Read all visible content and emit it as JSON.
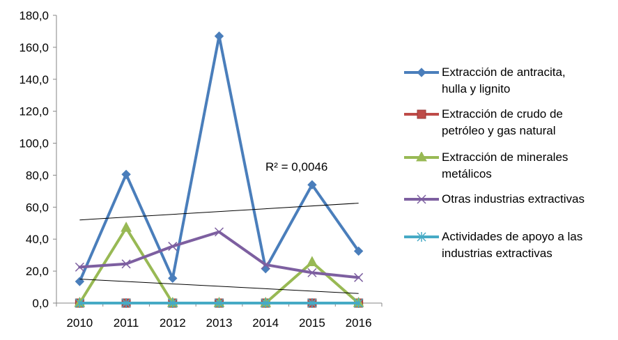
{
  "chart_data": {
    "type": "line",
    "title": "",
    "xlabel": "",
    "ylabel": "",
    "categories": [
      "2010",
      "2011",
      "2012",
      "2013",
      "2014",
      "2015",
      "2016"
    ],
    "ylim": [
      0,
      180
    ],
    "yticks": [
      "0,0",
      "20,0",
      "40,0",
      "60,0",
      "80,0",
      "100,0",
      "120,0",
      "140,0",
      "160,0",
      "180,0"
    ],
    "grid": false,
    "legend_position": "right",
    "series": [
      {
        "name": "Extracción de antracita, hulla y lignito",
        "name_lines": [
          "Extracción de antracita,",
          "hulla y lignito"
        ],
        "values": [
          13.5,
          80.5,
          15.5,
          167.0,
          21.5,
          74.0,
          32.5
        ],
        "color": "#4A7EBB",
        "marker": "diamond",
        "trend": [
          52.0,
          62.5
        ]
      },
      {
        "name": "Extracción de crudo de petróleo y gas natural",
        "name_lines": [
          "Extracción de crudo de",
          "petróleo y gas natural"
        ],
        "values": [
          0,
          0,
          0,
          0,
          0,
          0,
          0
        ],
        "color": "#BE4B48",
        "marker": "square"
      },
      {
        "name": "Extracción de minerales metálicos",
        "name_lines": [
          "Extracción de minerales",
          "metálicos"
        ],
        "values": [
          0,
          47.0,
          0,
          0,
          0,
          25.5,
          0
        ],
        "color": "#98B954",
        "marker": "triangle"
      },
      {
        "name": "Otras industrias extractivas",
        "name_lines": [
          "Otras industrias extractivas"
        ],
        "values": [
          22.5,
          24.5,
          35.5,
          44.5,
          24.0,
          19.0,
          16.0
        ],
        "color": "#7D5FA0",
        "marker": "x",
        "trend": [
          15.0,
          6.0
        ]
      },
      {
        "name": "Actividades de apoyo a las industrias extractivas",
        "name_lines": [
          "Actividades de apoyo a las",
          "industrias extractivas"
        ],
        "values": [
          0,
          0,
          0,
          0,
          0,
          0,
          0
        ],
        "color": "#46AAC5",
        "marker": "star"
      }
    ],
    "annotations": [
      {
        "text": "R² = 0,0046"
      }
    ]
  }
}
